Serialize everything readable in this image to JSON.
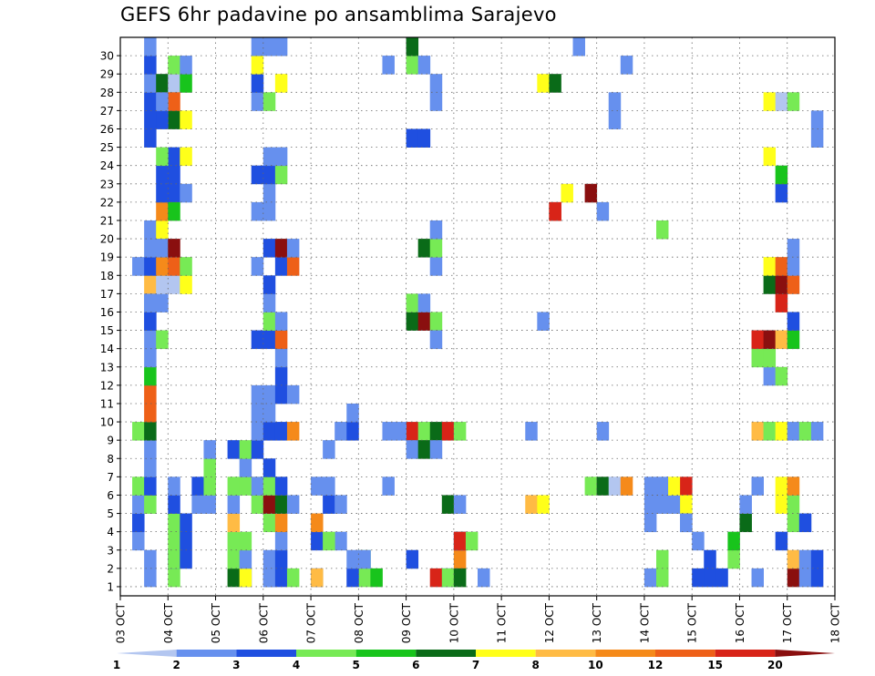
{
  "chart_data": {
    "type": "heatmap",
    "title": "GEFS 6hr padavine po ansamblima Sarajevo",
    "xlabel": "",
    "ylabel": "",
    "x_tick_labels": [
      "03 OCT",
      "04 OCT",
      "05 OCT",
      "06 OCT",
      "07 OCT",
      "08 OCT",
      "09 OCT",
      "10 OCT",
      "11 OCT",
      "12 OCT",
      "13 OCT",
      "14 OCT",
      "15 OCT",
      "16 OCT",
      "17 OCT",
      "18 OCT"
    ],
    "x_steps_per_day": 4,
    "y_tick_labels": [
      1,
      2,
      3,
      4,
      5,
      6,
      7,
      8,
      9,
      10,
      11,
      12,
      13,
      14,
      15,
      16,
      17,
      18,
      19,
      20,
      21,
      22,
      23,
      24,
      25,
      26,
      27,
      28,
      29,
      30
    ],
    "grid": true,
    "colorbar": {
      "labels": [
        1,
        2,
        3,
        4,
        5,
        6,
        7,
        8,
        10,
        12,
        15,
        20
      ],
      "colors": [
        "#b3c6f0",
        "#6690ee",
        "#1f4fe0",
        "#77ea55",
        "#18c41c",
        "#0a6b18",
        "#ffff1a",
        "#ffbb44",
        "#f58a1a",
        "#ee6018",
        "#d82418",
        "#8a0f0f"
      ]
    },
    "cells": [
      [
        1,
        4,
        3
      ],
      [
        1,
        10,
        2
      ],
      [
        1,
        12,
        2
      ],
      [
        2,
        4,
        2
      ],
      [
        1,
        16,
        2
      ],
      [
        3,
        16,
        2
      ],
      [
        4,
        16,
        8
      ],
      [
        1,
        16,
        7
      ],
      [
        1,
        20,
        3
      ],
      [
        2,
        20,
        3
      ],
      [
        1,
        21,
        4
      ],
      [
        2,
        24,
        2
      ],
      [
        1,
        27,
        2
      ],
      [
        1,
        28,
        3
      ],
      [
        2,
        28,
        8
      ],
      [
        3,
        28,
        2
      ],
      [
        2,
        4,
        3
      ],
      [
        3,
        4,
        3
      ],
      [
        4,
        4,
        3
      ],
      [
        2,
        5,
        2
      ],
      [
        3,
        5,
        2
      ],
      [
        4,
        5,
        2
      ],
      [
        5,
        4,
        2
      ],
      [
        6,
        4,
        1
      ],
      [
        5,
        6,
        1
      ],
      [
        6,
        6,
        2
      ],
      [
        5,
        7,
        1
      ],
      [
        6,
        7,
        3
      ],
      [
        7,
        7,
        3
      ],
      [
        8,
        7,
        1
      ],
      [
        1,
        2,
        1
      ],
      [
        2,
        2,
        1
      ],
      [
        3,
        1,
        1
      ],
      [
        4,
        1,
        1
      ],
      [
        4,
        1,
        2
      ],
      [
        5,
        1,
        1
      ],
      [
        6,
        1,
        3
      ],
      [
        5,
        2,
        3
      ],
      [
        6,
        2,
        2
      ],
      [
        7,
        2,
        1
      ],
      [
        8,
        2,
        1
      ],
      [
        9,
        1,
        3
      ],
      [
        9,
        2,
        5
      ],
      [
        10,
        2,
        9
      ],
      [
        11,
        2,
        9
      ],
      [
        12,
        2,
        4
      ],
      [
        13,
        2,
        1
      ],
      [
        14,
        2,
        1
      ],
      [
        15,
        2,
        1
      ],
      [
        16,
        2,
        1
      ],
      [
        17,
        2,
        7
      ],
      [
        18,
        1,
        1
      ],
      [
        18,
        2,
        2
      ],
      [
        19,
        2,
        1
      ],
      [
        20,
        2,
        1
      ],
      [
        20,
        3,
        6
      ],
      [
        21,
        3,
        8
      ],
      [
        22,
        3,
        2
      ],
      [
        23,
        3,
        2
      ],
      [
        23,
        4,
        2
      ],
      [
        24,
        4,
        2
      ],
      [
        25,
        2,
        2
      ],
      [
        26,
        2,
        2
      ],
      [
        27,
        2,
        2
      ],
      [
        28,
        2,
        1
      ],
      [
        29,
        2,
        2
      ],
      [
        30,
        2,
        1
      ],
      [
        14,
        3,
        3
      ],
      [
        15,
        2,
        2
      ],
      [
        16,
        2,
        1
      ],
      [
        16,
        3,
        1
      ],
      [
        17,
        3,
        12
      ],
      [
        17,
        4,
        12
      ],
      [
        17,
        5,
        6
      ],
      [
        18,
        3,
        8
      ],
      [
        18,
        4,
        9
      ],
      [
        18,
        5,
        3
      ],
      [
        19,
        3,
        1
      ],
      [
        19,
        4,
        11
      ],
      [
        24,
        3,
        3
      ],
      [
        24,
        5,
        6
      ],
      [
        28,
        3,
        5
      ],
      [
        28,
        4,
        12
      ],
      [
        28,
        5,
        4
      ],
      [
        29,
        4,
        3
      ],
      [
        29,
        5,
        1
      ],
      [
        26,
        4,
        5
      ],
      [
        26,
        5,
        6
      ],
      [
        26,
        3,
        2
      ],
      [
        27,
        4,
        9
      ],
      [
        27,
        3,
        1
      ],
      [
        22,
        4,
        2
      ],
      [
        21,
        4,
        4
      ],
      [
        22,
        5,
        1
      ],
      [
        1,
        9,
        5
      ],
      [
        1,
        10,
        6
      ],
      [
        2,
        9,
        3
      ],
      [
        2,
        10,
        1
      ],
      [
        3,
        9,
        3
      ],
      [
        3,
        10,
        3
      ],
      [
        4,
        9,
        7
      ],
      [
        5,
        9,
        1
      ],
      [
        6,
        9,
        3
      ],
      [
        6,
        10,
        3
      ],
      [
        6,
        11,
        6
      ],
      [
        7,
        10,
        1
      ],
      [
        8,
        9,
        2
      ],
      [
        8,
        10,
        3
      ],
      [
        8,
        11,
        2
      ],
      [
        1,
        12,
        1
      ],
      [
        1,
        13,
        2
      ],
      [
        1,
        14,
        3
      ],
      [
        2,
        12,
        1
      ],
      [
        2,
        13,
        2
      ],
      [
        3,
        13,
        1
      ],
      [
        4,
        12,
        3
      ],
      [
        4,
        13,
        8
      ],
      [
        5,
        11,
        3
      ],
      [
        5,
        12,
        11
      ],
      [
        5,
        13,
        5
      ],
      [
        5,
        14,
        1
      ],
      [
        6,
        11,
        1
      ],
      [
        6,
        12,
        3
      ],
      [
        6,
        13,
        2
      ],
      [
        7,
        12,
        2
      ],
      [
        9,
        11,
        1
      ],
      [
        9,
        12,
        2
      ],
      [
        9,
        13,
        2
      ],
      [
        9,
        14,
        8
      ],
      [
        10,
        11,
        1
      ],
      [
        10,
        12,
        1
      ],
      [
        11,
        11,
        1
      ],
      [
        11,
        12,
        1
      ],
      [
        11,
        13,
        2
      ],
      [
        11,
        14,
        1
      ],
      [
        12,
        13,
        2
      ],
      [
        13,
        13,
        1
      ],
      [
        14,
        11,
        2
      ],
      [
        14,
        12,
        2
      ],
      [
        14,
        13,
        9
      ],
      [
        15,
        12,
        3
      ],
      [
        15,
        13,
        1
      ],
      [
        16,
        12,
        1
      ],
      [
        17,
        12,
        2
      ],
      [
        18,
        11,
        1
      ],
      [
        18,
        13,
        2
      ],
      [
        18,
        14,
        9
      ],
      [
        19,
        12,
        2
      ],
      [
        19,
        13,
        11
      ],
      [
        19,
        14,
        1
      ],
      [
        21,
        11,
        1
      ],
      [
        21,
        12,
        1
      ],
      [
        22,
        12,
        1
      ],
      [
        23,
        11,
        2
      ],
      [
        23,
        12,
        2
      ],
      [
        23,
        13,
        3
      ],
      [
        24,
        12,
        1
      ],
      [
        24,
        13,
        1
      ],
      [
        27,
        11,
        1
      ],
      [
        27,
        12,
        3
      ],
      [
        28,
        11,
        2
      ],
      [
        28,
        13,
        6
      ],
      [
        29,
        11,
        6
      ],
      [
        30,
        11,
        1
      ],
      [
        30,
        12,
        1
      ],
      [
        30,
        13,
        1
      ],
      [
        1,
        19,
        2
      ],
      [
        2,
        20,
        1
      ],
      [
        2,
        19,
        1
      ],
      [
        3,
        18,
        1
      ],
      [
        3,
        17,
        3
      ],
      [
        5,
        17,
        2
      ],
      [
        5,
        18,
        1
      ],
      [
        6,
        16,
        1
      ],
      [
        6,
        17,
        1
      ],
      [
        8,
        17,
        1
      ],
      [
        9,
        18,
        1
      ],
      [
        9,
        19,
        2
      ],
      [
        10,
        19,
        1
      ],
      [
        9,
        24,
        10
      ],
      [
        9,
        25,
        3
      ],
      [
        9,
        26,
        5
      ],
      [
        8,
        24,
        1
      ],
      [
        8,
        25,
        5
      ],
      [
        8,
        26,
        1
      ],
      [
        9,
        23,
        1
      ],
      [
        9,
        22,
        1
      ],
      [
        15,
        24,
        5
      ],
      [
        15,
        25,
        11
      ],
      [
        15,
        26,
        3
      ],
      [
        14,
        26,
        1
      ],
      [
        16,
        24,
        3
      ],
      [
        16,
        25,
        1
      ],
      [
        18,
        26,
        1
      ],
      [
        19,
        25,
        5
      ],
      [
        19,
        26,
        3
      ],
      [
        20,
        26,
        1
      ],
      [
        25,
        24,
        2
      ],
      [
        25,
        25,
        2
      ],
      [
        27,
        26,
        1
      ],
      [
        28,
        26,
        1
      ],
      [
        29,
        24,
        3
      ],
      [
        29,
        25,
        1
      ],
      [
        29,
        22,
        1
      ],
      [
        30,
        24,
        5
      ],
      [
        1,
        26,
        10
      ],
      [
        1,
        27,
        3
      ],
      [
        1,
        28,
        5
      ],
      [
        3,
        28,
        10
      ],
      [
        3,
        29,
        3
      ],
      [
        5,
        27,
        5
      ],
      [
        5,
        28,
        1
      ],
      [
        6,
        22,
        1
      ],
      [
        9,
        27,
        10
      ],
      [
        9,
        28,
        3
      ],
      [
        1,
        30,
        1
      ],
      [
        5,
        34,
        7
      ],
      [
        5,
        35,
        6
      ],
      [
        9,
        34,
        1
      ],
      [
        15,
        35,
        1
      ],
      [
        21,
        36,
        10
      ],
      [
        22,
        37,
        6
      ],
      [
        28,
        35,
        6
      ],
      [
        28,
        36,
        5
      ],
      [
        29,
        42,
        1
      ],
      [
        1,
        44,
        1
      ],
      [
        5,
        44,
        1
      ],
      [
        6,
        44,
        1
      ],
      [
        1,
        45,
        3
      ],
      [
        2,
        45,
        3
      ],
      [
        4,
        44,
        1
      ],
      [
        5,
        45,
        1
      ],
      [
        6,
        45,
        1
      ],
      [
        21,
        40,
        1
      ],
      [
        26,
        41,
        1
      ],
      [
        27,
        41,
        1
      ],
      [
        30,
        38,
        1
      ],
      [
        6,
        39,
        3
      ],
      [
        6,
        40,
        5
      ],
      [
        6,
        41,
        12
      ],
      [
        6,
        42,
        8
      ],
      [
        9,
        40,
        1
      ],
      [
        21,
        36,
        10
      ],
      [
        22,
        39,
        11
      ],
      [
        20,
        45,
        3
      ],
      [
        5,
        46,
        1
      ],
      [
        4,
        47,
        1
      ],
      [
        3,
        48,
        1
      ],
      [
        2,
        49,
        2
      ],
      [
        1,
        49,
        2
      ],
      [
        6,
        46,
        6
      ],
      [
        6,
        47,
        10
      ],
      [
        5,
        47,
        6
      ],
      [
        4,
        47,
        1
      ],
      [
        1,
        48,
        2
      ],
      [
        1,
        50,
        2
      ],
      [
        2,
        51,
        3
      ],
      [
        3,
        51,
        4
      ],
      [
        4,
        52,
        5
      ],
      [
        5,
        52,
        1
      ],
      [
        1,
        53,
        1
      ],
      [
        6,
        53,
        1
      ],
      [
        9,
        53,
        7
      ],
      [
        9,
        54,
        3
      ],
      [
        9,
        55,
        6
      ],
      [
        9,
        56,
        1
      ],
      [
        12,
        54,
        1
      ],
      [
        12,
        55,
        3
      ],
      [
        13,
        53,
        3
      ],
      [
        13,
        54,
        3
      ],
      [
        14,
        53,
        10
      ],
      [
        14,
        54,
        11
      ],
      [
        14,
        55,
        7
      ],
      [
        14,
        56,
        4
      ],
      [
        1,
        56,
        11
      ],
      [
        2,
        56,
        7
      ],
      [
        1,
        57,
        1
      ],
      [
        2,
        57,
        1
      ],
      [
        1,
        58,
        2
      ],
      [
        2,
        58,
        2
      ],
      [
        5,
        55,
        6
      ],
      [
        5,
        56,
        3
      ],
      [
        6,
        55,
        6
      ],
      [
        6,
        56,
        8
      ],
      [
        4,
        56,
        3
      ],
      [
        4,
        57,
        2
      ],
      [
        3,
        55,
        2
      ],
      [
        15,
        56,
        2
      ],
      [
        16,
        55,
        10
      ],
      [
        17,
        54,
        5
      ],
      [
        17,
        55,
        11
      ],
      [
        17,
        56,
        9
      ],
      [
        18,
        54,
        6
      ],
      [
        18,
        55,
        9
      ],
      [
        18,
        56,
        1
      ],
      [
        19,
        56,
        1
      ],
      [
        22,
        55,
        2
      ],
      [
        23,
        55,
        4
      ],
      [
        24,
        54,
        6
      ],
      [
        27,
        54,
        6
      ],
      [
        27,
        55,
        12
      ],
      [
        27,
        56,
        3
      ],
      [
        25,
        58,
        1
      ],
      [
        26,
        58,
        1
      ],
      [
        9,
        57,
        3
      ],
      [
        9,
        58,
        1
      ],
      [
        9,
        60,
        1
      ],
      [
        9,
        61,
        2
      ],
      [
        5,
        60,
        3
      ],
      [
        4,
        61,
        3
      ],
      [
        1,
        62,
        2
      ],
      [
        6,
        62,
        1
      ],
      [
        7,
        62,
        1
      ],
      [
        8,
        62,
        1
      ],
      [
        3,
        63,
        1
      ],
      [
        1,
        63,
        5
      ],
      [
        9,
        62,
        1
      ],
      [
        11,
        62,
        2
      ],
      [
        12,
        62,
        2
      ],
      [
        11,
        63,
        1
      ],
      [
        12,
        64,
        5
      ],
      [
        12,
        65,
        2
      ],
      [
        13,
        62,
        2
      ],
      [
        13,
        64,
        1
      ],
      [
        13,
        65,
        2
      ],
      [
        30,
        60,
        1
      ],
      [
        30,
        61,
        6
      ],
      [
        30,
        62,
        3
      ],
      [
        30,
        63,
        5
      ],
      [
        30,
        64,
        1
      ],
      [
        24,
        61,
        6
      ],
      [
        24,
        62,
        7
      ],
      [
        23,
        62,
        2
      ],
      [
        27,
        62,
        1
      ],
      [
        27,
        64,
        1
      ],
      [
        29,
        60,
        1
      ],
      [
        29,
        63,
        2
      ],
      [
        15,
        62,
        2
      ],
      [
        15,
        63,
        1
      ],
      [
        15,
        66,
        1
      ],
      [
        15,
        67,
        4
      ],
      [
        16,
        67,
        2
      ],
      [
        16,
        68,
        4
      ],
      [
        16,
        69,
        2
      ],
      [
        15,
        70,
        1
      ],
      [
        15,
        71,
        2
      ],
      [
        20,
        61,
        1
      ],
      [
        20,
        62,
        2
      ],
      [
        21,
        62,
        3
      ],
      [
        19,
        62,
        1
      ],
      [
        16,
        69,
        1
      ],
      [
        17,
        72,
        1
      ],
      [
        19,
        72,
        1
      ],
      [
        21,
        72,
        1
      ],
      [
        22,
        72,
        1
      ],
      [
        20,
        74,
        6
      ],
      [
        20,
        75,
        2
      ],
      [
        5,
        66,
        2
      ],
      [
        5,
        67,
        5
      ],
      [
        5,
        68,
        5
      ],
      [
        4,
        66,
        2
      ],
      [
        4,
        67,
        5
      ],
      [
        4,
        68,
        10
      ],
      [
        4,
        69,
        12
      ],
      [
        4,
        70,
        2
      ],
      [
        4,
        71,
        7
      ],
      [
        6,
        67,
        3
      ],
      [
        6,
        68,
        5
      ],
      [
        6,
        69,
        5
      ],
      [
        3,
        67,
        11
      ],
      [
        3,
        68,
        3
      ],
      [
        2,
        67,
        1
      ]
    ]
  }
}
